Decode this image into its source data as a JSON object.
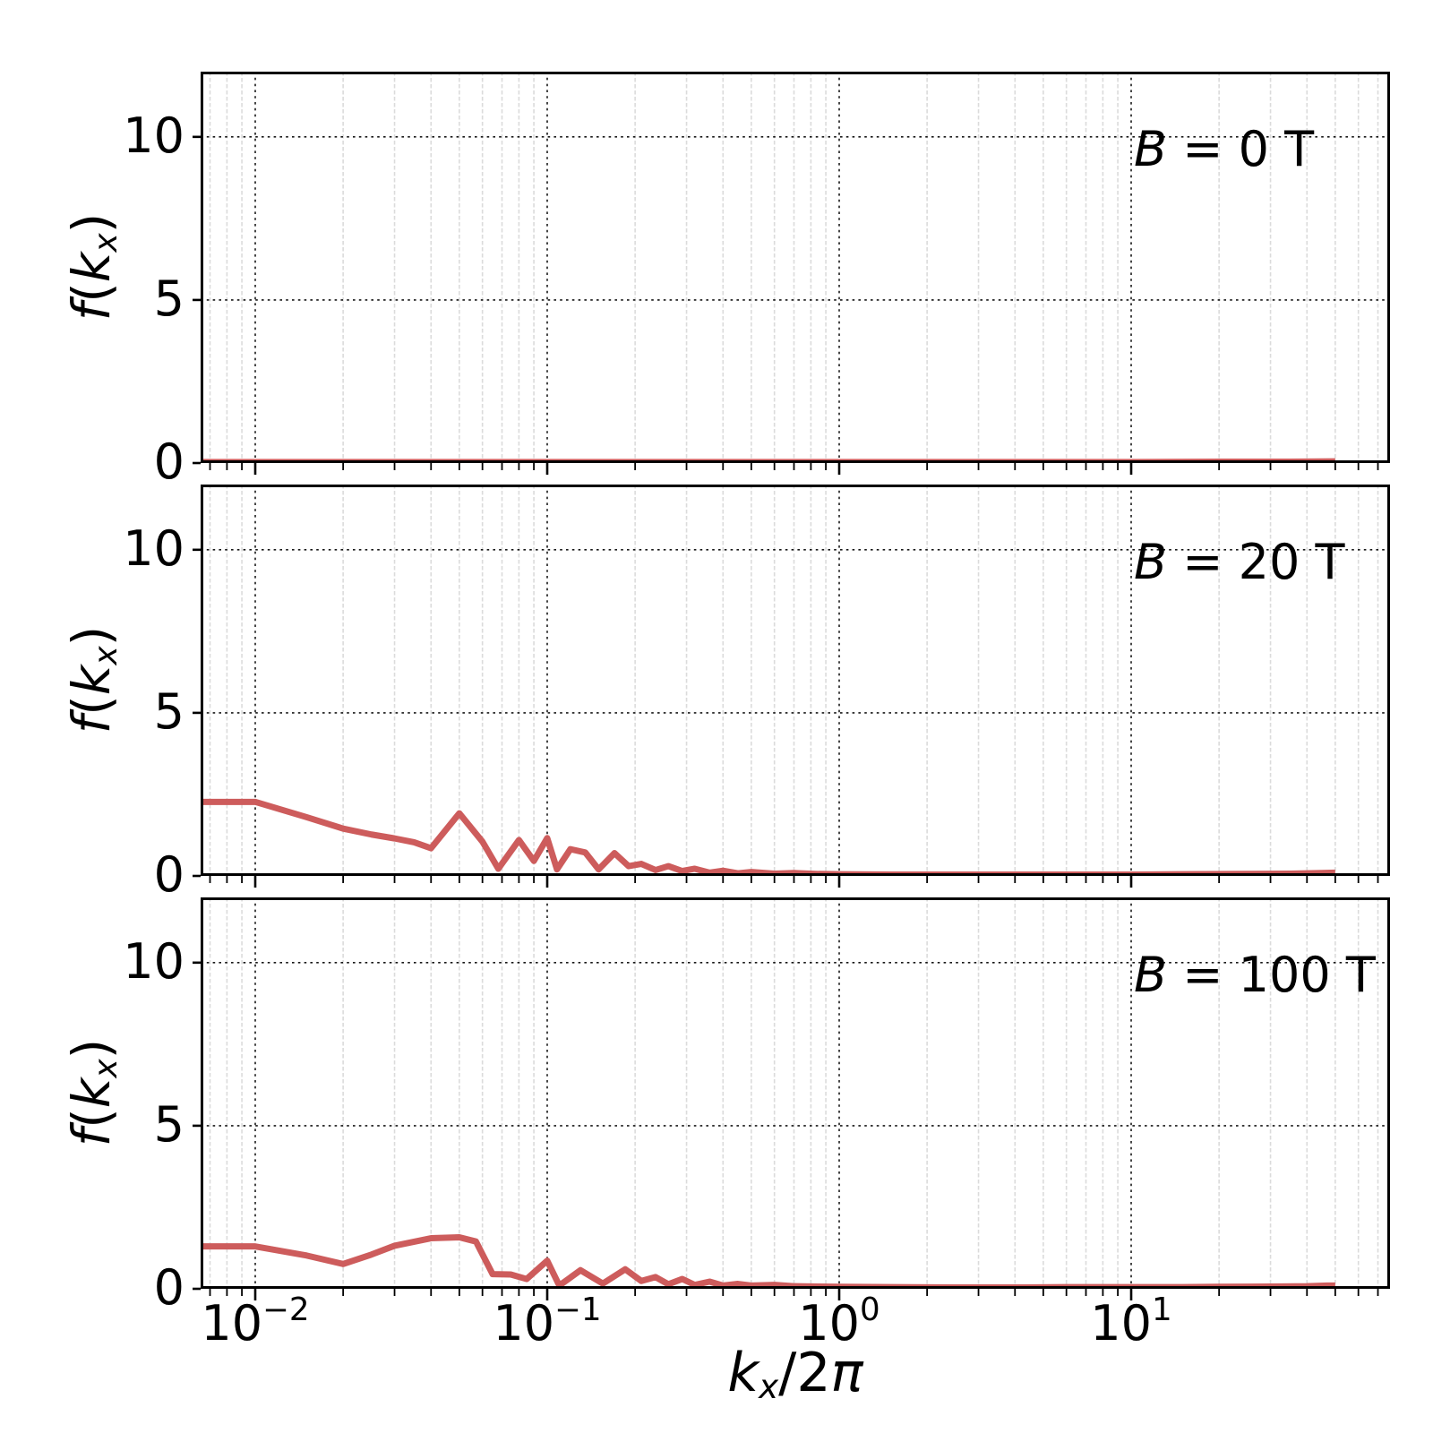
{
  "style": {
    "background": "#ffffff",
    "line_color": "#cd5c5c",
    "spine_color": "#000000",
    "grid_major_color": "#000000",
    "grid_minor_color": "#dbdbdb",
    "text_color": "#000000"
  },
  "axis_text": {
    "xlabel_parts": {
      "k": "k",
      "sub": "x",
      "slash2": "/2",
      "pi": "π"
    },
    "ylabel_parts": {
      "f": "f",
      "open": "(",
      "k": "k",
      "sub": "x",
      "close": ")"
    },
    "xticks": [
      {
        "base": "10",
        "exp": "−2",
        "value": 0.01
      },
      {
        "base": "10",
        "exp": "−1",
        "value": 0.1
      },
      {
        "base": "10",
        "exp": "0",
        "value": 1
      },
      {
        "base": "10",
        "exp": "1",
        "value": 10
      }
    ],
    "yticks": [
      {
        "label": "0",
        "value": 0
      },
      {
        "label": "5",
        "value": 5
      },
      {
        "label": "10",
        "value": 10
      }
    ],
    "annotations": [
      {
        "var": "B",
        "rest": " = 0 T"
      },
      {
        "var": "B",
        "rest": " = 20 T"
      },
      {
        "var": "B",
        "rest": " = 100 T"
      }
    ]
  },
  "chart_data": [
    {
      "type": "line",
      "annotation": "B = 0 T",
      "xlabel": "kₓ/2π",
      "ylabel": "f(kₓ)",
      "xscale": "log",
      "xlim": [
        0.0065,
        77
      ],
      "ylim": [
        0,
        12
      ],
      "grid": true,
      "color": "#cd5c5c",
      "x": [
        0.0065,
        0.01,
        0.03,
        0.1,
        0.3,
        1,
        3,
        10,
        20,
        35,
        50
      ],
      "y": [
        0.03,
        0.03,
        0.03,
        0.03,
        0.03,
        0.03,
        0.03,
        0.03,
        0.04,
        0.04,
        0.05
      ]
    },
    {
      "type": "line",
      "annotation": "B = 20 T",
      "xlabel": "kₓ/2π",
      "ylabel": "f(kₓ)",
      "xscale": "log",
      "xlim": [
        0.0065,
        77
      ],
      "ylim": [
        0,
        12
      ],
      "grid": true,
      "color": "#cd5c5c",
      "x": [
        0.0065,
        0.01,
        0.015,
        0.02,
        0.025,
        0.03,
        0.035,
        0.04,
        0.05,
        0.06,
        0.068,
        0.08,
        0.09,
        0.1,
        0.108,
        0.12,
        0.135,
        0.15,
        0.17,
        0.19,
        0.21,
        0.235,
        0.26,
        0.29,
        0.32,
        0.36,
        0.4,
        0.45,
        0.5,
        0.6,
        0.7,
        0.85,
        1.0,
        1.5,
        2.5,
        4,
        6,
        10,
        15,
        25,
        35,
        45,
        50
      ],
      "y": [
        2.27,
        2.27,
        1.8,
        1.45,
        1.27,
        1.15,
        1.03,
        0.85,
        1.92,
        1.05,
        0.22,
        1.1,
        0.46,
        1.16,
        0.2,
        0.82,
        0.72,
        0.2,
        0.7,
        0.3,
        0.37,
        0.18,
        0.3,
        0.15,
        0.22,
        0.1,
        0.16,
        0.08,
        0.12,
        0.07,
        0.09,
        0.06,
        0.05,
        0.04,
        0.04,
        0.04,
        0.04,
        0.04,
        0.05,
        0.06,
        0.07,
        0.09,
        0.1
      ]
    },
    {
      "type": "line",
      "annotation": "B = 100 T",
      "xlabel": "kₓ/2π",
      "ylabel": "f(kₓ)",
      "xscale": "log",
      "xlim": [
        0.0065,
        77
      ],
      "ylim": [
        0,
        12
      ],
      "grid": true,
      "color": "#cd5c5c",
      "x": [
        0.0065,
        0.01,
        0.015,
        0.02,
        0.025,
        0.03,
        0.04,
        0.05,
        0.057,
        0.065,
        0.075,
        0.085,
        0.1,
        0.11,
        0.13,
        0.155,
        0.185,
        0.21,
        0.235,
        0.26,
        0.29,
        0.32,
        0.36,
        0.4,
        0.45,
        0.5,
        0.6,
        0.7,
        0.85,
        1.0,
        1.5,
        2.5,
        4,
        6,
        10,
        15,
        20,
        30,
        40,
        47,
        50
      ],
      "y": [
        1.3,
        1.3,
        1.02,
        0.76,
        1.05,
        1.32,
        1.55,
        1.58,
        1.45,
        0.45,
        0.44,
        0.3,
        0.86,
        0.1,
        0.57,
        0.16,
        0.6,
        0.24,
        0.36,
        0.14,
        0.3,
        0.12,
        0.22,
        0.1,
        0.15,
        0.1,
        0.12,
        0.08,
        0.07,
        0.06,
        0.05,
        0.04,
        0.04,
        0.05,
        0.05,
        0.05,
        0.06,
        0.07,
        0.08,
        0.1,
        0.1
      ]
    }
  ]
}
